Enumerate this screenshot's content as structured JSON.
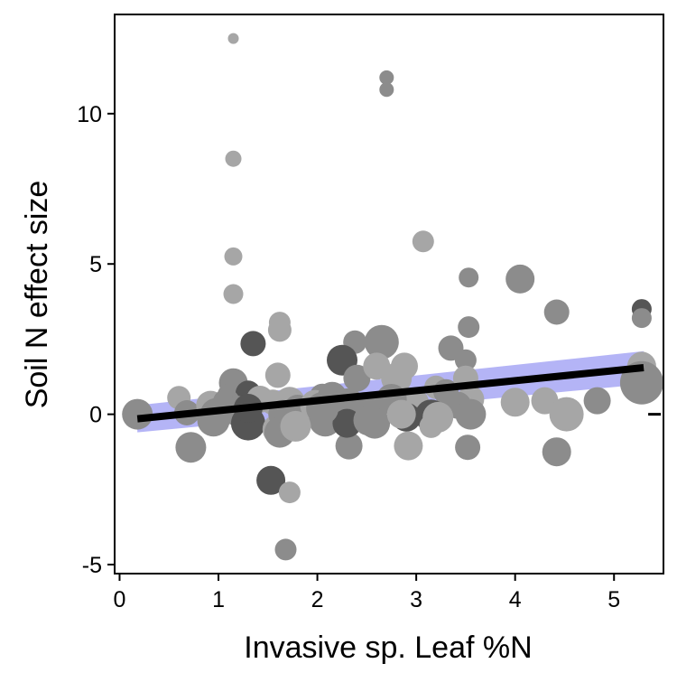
{
  "chart_data": {
    "type": "scatter",
    "title": "",
    "xlabel": "Invasive sp. Leaf %N",
    "ylabel": "Soil N effect size",
    "xlim": [
      -0.05,
      5.5
    ],
    "ylim": [
      -5.3,
      13.3
    ],
    "x_ticks": [
      {
        "value": 0,
        "label": "0"
      },
      {
        "value": 1,
        "label": "1"
      },
      {
        "value": 2,
        "label": "2"
      },
      {
        "value": 3,
        "label": "3"
      },
      {
        "value": 4,
        "label": "4"
      },
      {
        "value": 5,
        "label": "5"
      }
    ],
    "y_ticks": [
      {
        "value": -5,
        "label": "-5"
      },
      {
        "value": 0,
        "label": "0"
      },
      {
        "value": 5,
        "label": "5"
      },
      {
        "value": 10,
        "label": "10"
      }
    ],
    "grid": false,
    "legend": "none",
    "reference_line": {
      "y": 0,
      "style": "dashed",
      "color": "#000000"
    },
    "regression": {
      "x_start": 0.18,
      "x_end": 5.3,
      "y_start": -0.15,
      "y_end": 1.55,
      "ci_lower_start": -0.6,
      "ci_upper_start": 0.3,
      "ci_lower_end": 1.0,
      "ci_upper_end": 2.1,
      "line_color": "#000000",
      "band_color": "#a7a7f5"
    },
    "colors": {
      "light": "#a6a6a6",
      "mid": "#8c8c8c",
      "dark": "#555555"
    },
    "series": [
      {
        "marker_sizes": "varying",
        "x": [
          1.15,
          1.15,
          1.15,
          1.15,
          1.15,
          2.7,
          2.7,
          3.07,
          3.53,
          4.05,
          4.42,
          5.28,
          5.28,
          1.62,
          1.62,
          1.35,
          2.38,
          2.65,
          3.35,
          3.5,
          3.53,
          2.23,
          1.1,
          1.3,
          1.6,
          2.05,
          2.25,
          2.4,
          2.6,
          2.8,
          2.88,
          3.0,
          3.2,
          3.3,
          3.5,
          3.55,
          4.0,
          4.3,
          4.52,
          4.83,
          5.28,
          5.28,
          0.18,
          0.6,
          0.68,
          0.72,
          0.92,
          0.98,
          1.08,
          1.2,
          1.3,
          1.42,
          1.55,
          1.6,
          1.72,
          1.8,
          1.98,
          2.08,
          2.15,
          2.3,
          2.48,
          2.58,
          2.75,
          2.9,
          3.15,
          3.42,
          3.55,
          1.53,
          1.72,
          1.68,
          4.42,
          3.52,
          2.92,
          3.15,
          2.32,
          2.3,
          1.65,
          1.62,
          0.95,
          1.3,
          1.78,
          2.05,
          2.52,
          2.85,
          3.22
        ],
        "y": [
          12.5,
          8.5,
          5.25,
          4.0,
          1.05,
          11.2,
          10.8,
          5.75,
          4.55,
          4.5,
          3.4,
          3.5,
          3.2,
          3.05,
          2.8,
          2.35,
          2.4,
          2.4,
          2.2,
          1.8,
          2.9,
          1.8,
          0.65,
          0.7,
          1.3,
          0.6,
          1.8,
          1.2,
          1.6,
          1.2,
          1.6,
          0.4,
          0.9,
          0.75,
          1.2,
          0.5,
          0.4,
          0.45,
          0.0,
          0.45,
          1.6,
          1.05,
          0.0,
          0.55,
          0.05,
          -1.1,
          0.3,
          0.0,
          0.4,
          0.1,
          -0.3,
          0.5,
          0.4,
          -0.5,
          0.4,
          0.2,
          0.3,
          -0.2,
          0.6,
          0.2,
          0.2,
          -0.3,
          0.5,
          -0.1,
          -0.05,
          0.3,
          0.0,
          -2.2,
          -2.6,
          -4.5,
          -1.25,
          -1.1,
          -1.05,
          -0.4,
          -1.05,
          -0.3,
          0.0,
          -0.6,
          -0.2,
          0.2,
          -0.4,
          0.2,
          -0.2,
          0.0,
          -0.1
        ],
        "size": [
          6,
          9,
          10,
          11,
          16,
          8,
          8,
          12,
          11,
          16,
          14,
          11,
          11,
          12,
          13,
          14,
          13,
          19,
          14,
          12,
          12,
          12,
          12,
          14,
          14,
          14,
          17,
          15,
          15,
          17,
          15,
          14,
          13,
          14,
          14,
          15,
          16,
          15,
          19,
          15,
          16,
          24,
          17,
          13,
          14,
          17,
          16,
          18,
          15,
          17,
          19,
          15,
          14,
          17,
          17,
          15,
          17,
          18,
          16,
          22,
          18,
          17,
          17,
          16,
          18,
          15,
          17,
          16,
          12,
          12,
          16,
          14,
          16,
          13,
          15,
          16,
          16,
          17,
          18,
          16,
          17,
          18,
          17,
          16,
          17
        ],
        "shade": [
          "light",
          "light",
          "light",
          "light",
          "mid",
          "mid",
          "mid",
          "light",
          "mid",
          "mid",
          "mid",
          "dark",
          "mid",
          "light",
          "light",
          "dark",
          "mid",
          "mid",
          "mid",
          "mid",
          "mid",
          "dark",
          "mid",
          "dark",
          "light",
          "mid",
          "dark",
          "mid",
          "light",
          "light",
          "light",
          "light",
          "light",
          "mid",
          "light",
          "light",
          "light",
          "light",
          "light",
          "mid",
          "light",
          "mid",
          "mid",
          "light",
          "mid",
          "mid",
          "light",
          "mid",
          "mid",
          "mid",
          "dark",
          "light",
          "light",
          "light",
          "light",
          "mid",
          "light",
          "mid",
          "mid",
          "mid",
          "mid",
          "mid",
          "mid",
          "dark",
          "dark",
          "mid",
          "mid",
          "dark",
          "light",
          "mid",
          "mid",
          "mid",
          "light",
          "light",
          "mid",
          "dark",
          "mid",
          "mid",
          "mid",
          "dark",
          "light",
          "mid",
          "mid",
          "light",
          "light"
        ]
      }
    ]
  }
}
